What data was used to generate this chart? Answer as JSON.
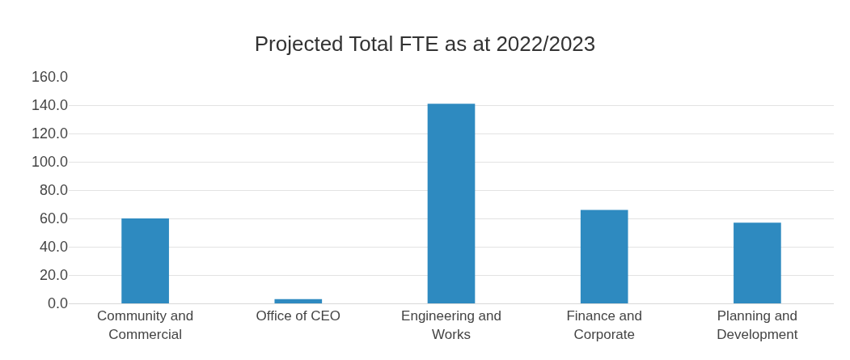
{
  "chart_data": {
    "type": "bar",
    "title": "Projected Total FTE as at 2022/2023",
    "categories": [
      "Community and\nCommercial",
      "Office of CEO",
      "Engineering and\nWorks",
      "Finance and\nCorporate",
      "Planning and\nDevelopment"
    ],
    "values": [
      60,
      3,
      141,
      66,
      57
    ],
    "color": "#2e8ac0",
    "ylim": [
      0,
      160
    ],
    "yticks": [
      {
        "value": 0,
        "label": "0.0"
      },
      {
        "value": 20,
        "label": "20.0"
      },
      {
        "value": 40,
        "label": "40.0"
      },
      {
        "value": 60,
        "label": "60.0"
      },
      {
        "value": 80,
        "label": "80.0"
      },
      {
        "value": 100,
        "label": "100.0"
      },
      {
        "value": 120,
        "label": "120.0"
      },
      {
        "value": 140,
        "label": "140.0"
      },
      {
        "value": 160,
        "label": "160.0"
      }
    ],
    "grid": "y"
  }
}
